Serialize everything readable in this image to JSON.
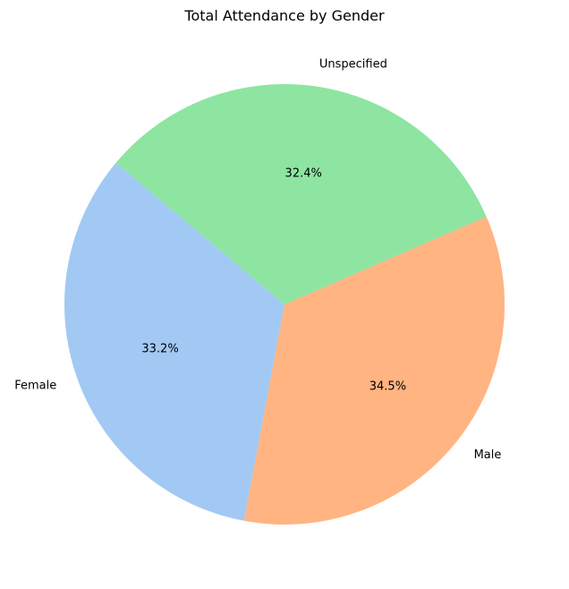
{
  "chart_data": {
    "type": "pie",
    "title": "Total Attendance by Gender",
    "slices": [
      {
        "label": "Female",
        "value": 33.2,
        "pct_label": "33.2%",
        "color": "#a1c9f4"
      },
      {
        "label": "Male",
        "value": 34.5,
        "pct_label": "34.5%",
        "color": "#ffb482"
      },
      {
        "label": "Unspecified",
        "value": 32.4,
        "pct_label": "32.4%",
        "color": "#8de5a1"
      }
    ],
    "start_angle_deg": 140,
    "direction": "counterclockwise"
  }
}
